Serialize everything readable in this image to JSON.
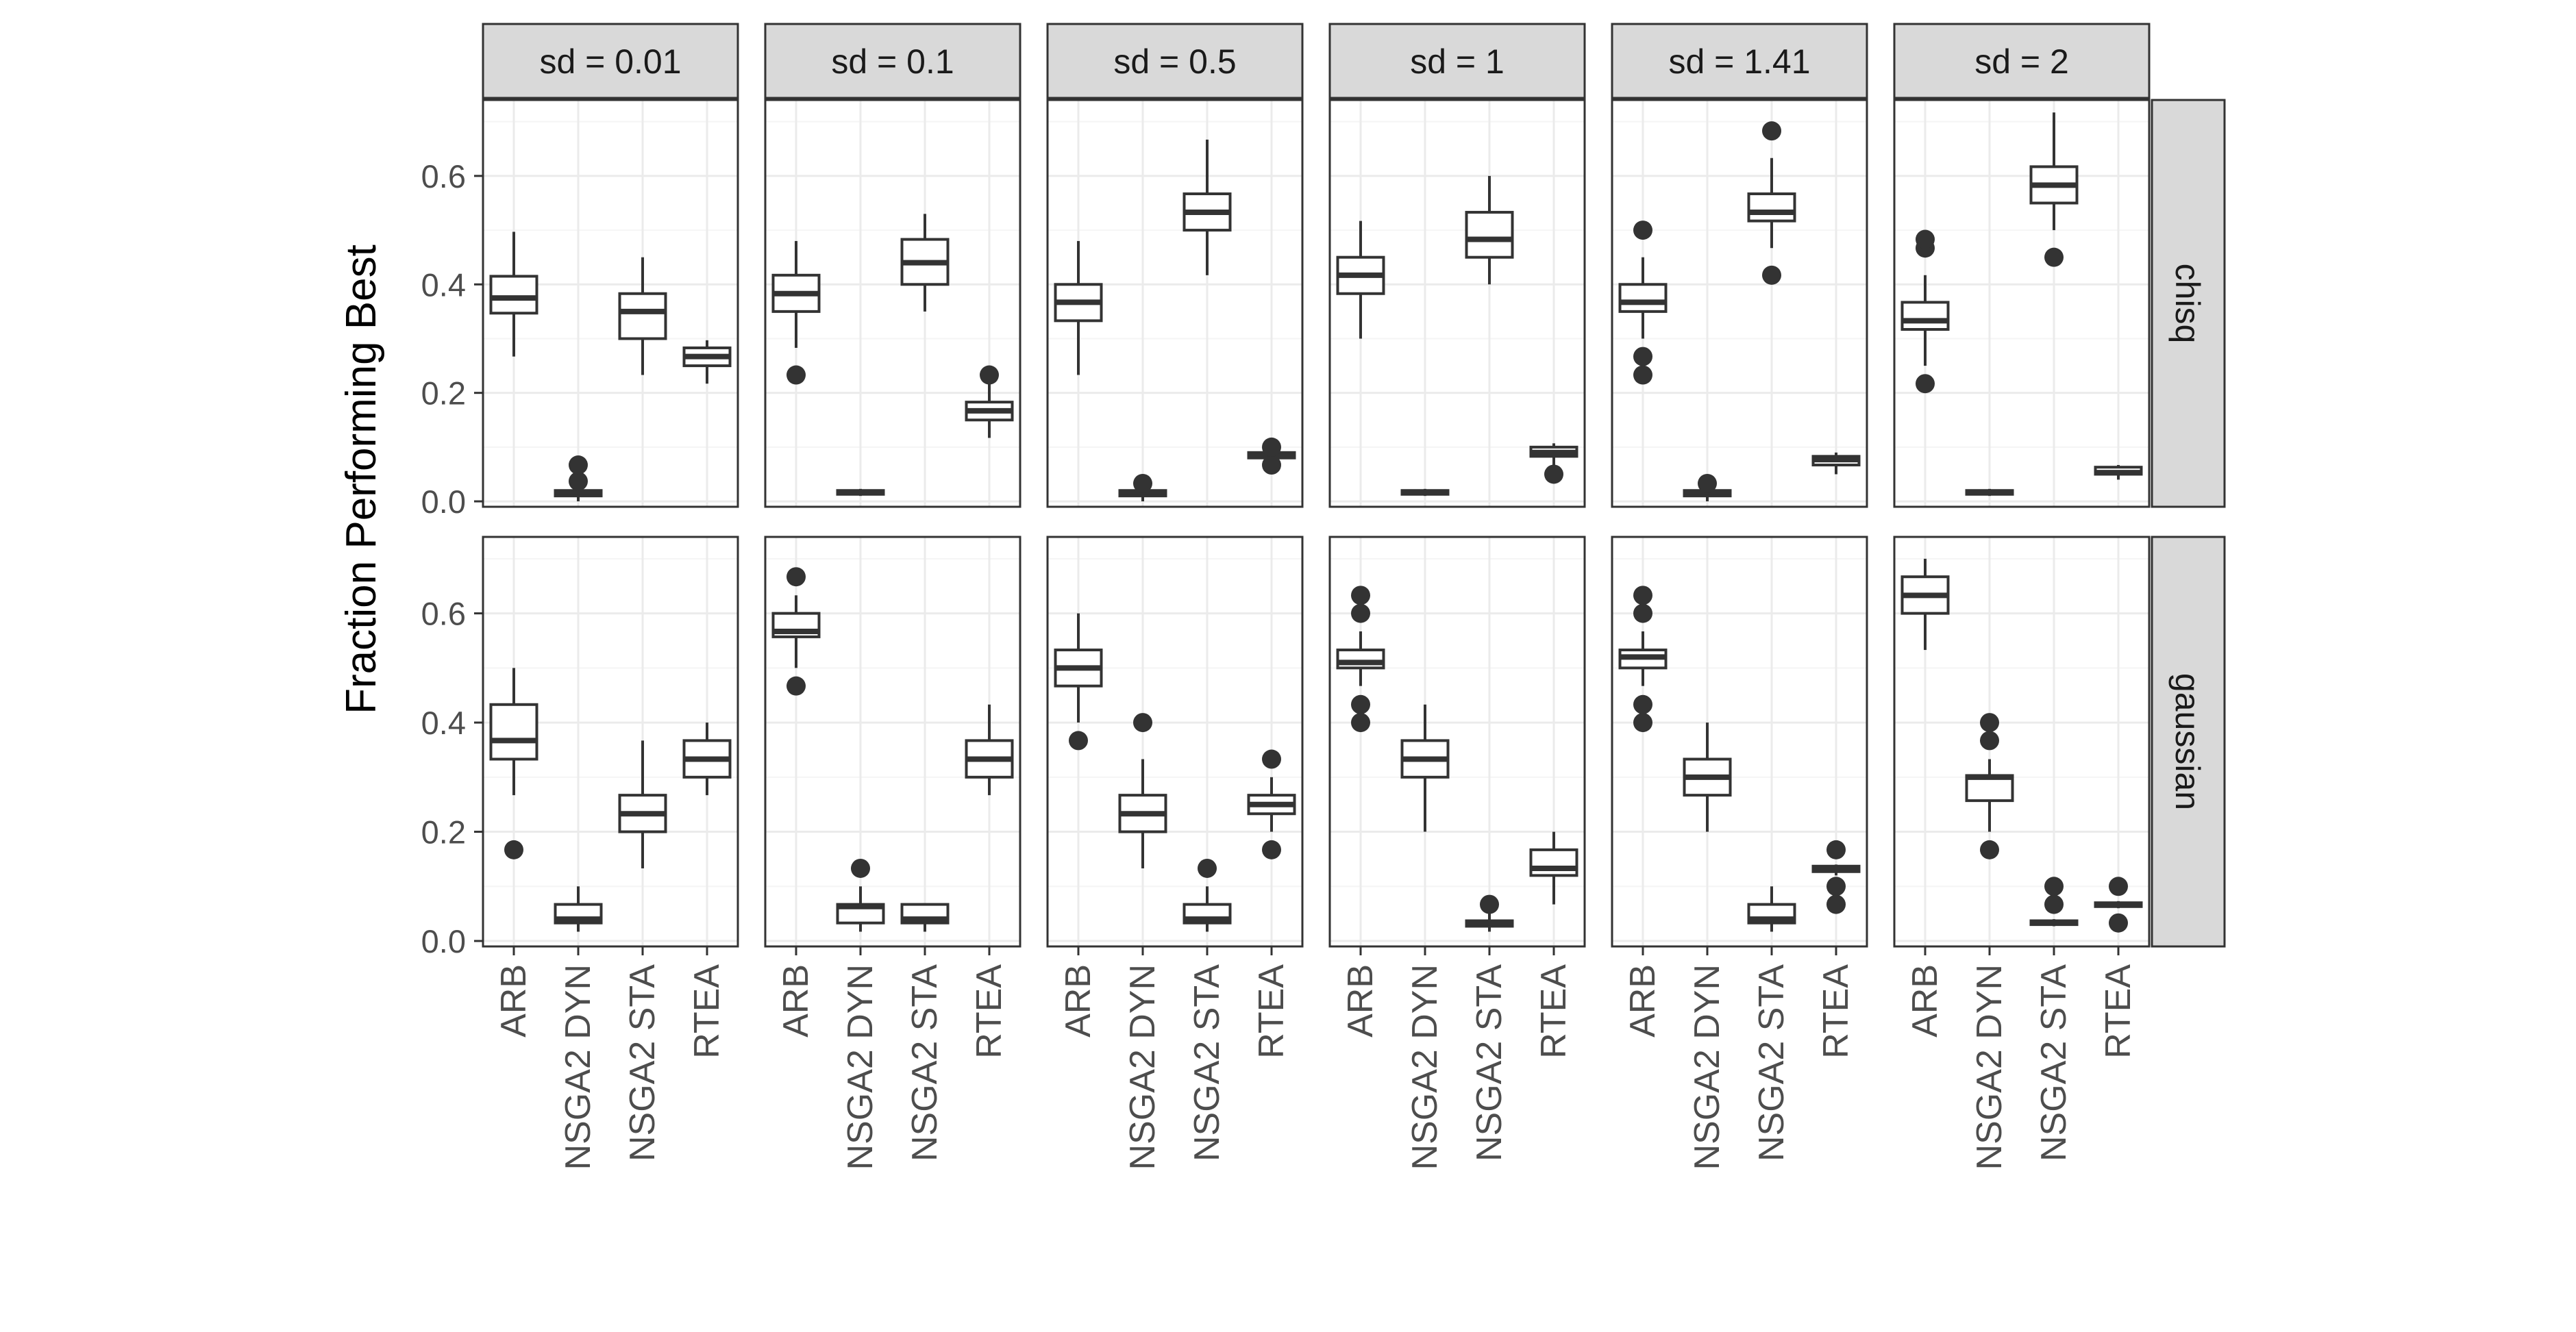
{
  "chart_data": {
    "type": "boxplot",
    "title": "",
    "xlabel": "",
    "ylabel": "Fraction Performing Best",
    "ylim": [
      -0.01,
      0.74
    ],
    "y_ticks": [
      0.0,
      0.2,
      0.4,
      0.6
    ],
    "y_tick_labels": [
      "0.0",
      "0.2",
      "0.4",
      "0.6"
    ],
    "grid": true,
    "legend": "none",
    "categories": [
      "ARB",
      "NSGA2 DYN",
      "NSGA2 STA",
      "RTEA"
    ],
    "columns": [
      "sd = 0.01",
      "sd = 0.1",
      "sd = 0.5",
      "sd = 1",
      "sd = 1.41",
      "sd = 2"
    ],
    "rows": [
      "chisq",
      "gaussian"
    ],
    "panels": [
      {
        "row": "chisq",
        "column": "sd = 0.01",
        "boxes": [
          {
            "category": "ARB",
            "whisker_low": 0.267,
            "q1": 0.347,
            "median": 0.375,
            "q3": 0.415,
            "whisker_high": 0.497,
            "outliers": []
          },
          {
            "category": "NSGA2 DYN",
            "whisker_low": 0.0,
            "q1": 0.01,
            "median": 0.017,
            "q3": 0.02,
            "whisker_high": 0.03,
            "outliers": [
              0.037,
              0.067
            ]
          },
          {
            "category": "NSGA2 STA",
            "whisker_low": 0.233,
            "q1": 0.3,
            "median": 0.35,
            "q3": 0.383,
            "whisker_high": 0.45,
            "outliers": []
          },
          {
            "category": "RTEA",
            "whisker_low": 0.217,
            "q1": 0.25,
            "median": 0.267,
            "q3": 0.283,
            "whisker_high": 0.297,
            "outliers": []
          }
        ]
      },
      {
        "row": "chisq",
        "column": "sd = 0.1",
        "boxes": [
          {
            "category": "ARB",
            "whisker_low": 0.283,
            "q1": 0.35,
            "median": 0.383,
            "q3": 0.417,
            "whisker_high": 0.48,
            "outliers": [
              0.233
            ]
          },
          {
            "category": "NSGA2 DYN",
            "whisker_low": 0.01,
            "q1": 0.013,
            "median": 0.017,
            "q3": 0.02,
            "whisker_high": 0.023,
            "outliers": []
          },
          {
            "category": "NSGA2 STA",
            "whisker_low": 0.35,
            "q1": 0.4,
            "median": 0.44,
            "q3": 0.483,
            "whisker_high": 0.53,
            "outliers": []
          },
          {
            "category": "RTEA",
            "whisker_low": 0.117,
            "q1": 0.15,
            "median": 0.167,
            "q3": 0.183,
            "whisker_high": 0.217,
            "outliers": [
              0.233
            ]
          }
        ]
      },
      {
        "row": "chisq",
        "column": "sd = 0.5",
        "boxes": [
          {
            "category": "ARB",
            "whisker_low": 0.233,
            "q1": 0.333,
            "median": 0.367,
            "q3": 0.4,
            "whisker_high": 0.48,
            "outliers": []
          },
          {
            "category": "NSGA2 DYN",
            "whisker_low": 0.0,
            "q1": 0.01,
            "median": 0.017,
            "q3": 0.02,
            "whisker_high": 0.027,
            "outliers": [
              0.033
            ]
          },
          {
            "category": "NSGA2 STA",
            "whisker_low": 0.417,
            "q1": 0.5,
            "median": 0.533,
            "q3": 0.567,
            "whisker_high": 0.667,
            "outliers": []
          },
          {
            "category": "RTEA",
            "whisker_low": 0.077,
            "q1": 0.08,
            "median": 0.083,
            "q3": 0.09,
            "whisker_high": 0.093,
            "outliers": [
              0.067,
              0.1
            ]
          }
        ]
      },
      {
        "row": "chisq",
        "column": "sd = 1",
        "boxes": [
          {
            "category": "ARB",
            "whisker_low": 0.3,
            "q1": 0.383,
            "median": 0.417,
            "q3": 0.45,
            "whisker_high": 0.517,
            "outliers": []
          },
          {
            "category": "NSGA2 DYN",
            "whisker_low": 0.01,
            "q1": 0.013,
            "median": 0.017,
            "q3": 0.02,
            "whisker_high": 0.023,
            "outliers": []
          },
          {
            "category": "NSGA2 STA",
            "whisker_low": 0.4,
            "q1": 0.45,
            "median": 0.483,
            "q3": 0.533,
            "whisker_high": 0.6,
            "outliers": []
          },
          {
            "category": "RTEA",
            "whisker_low": 0.067,
            "q1": 0.083,
            "median": 0.09,
            "q3": 0.1,
            "whisker_high": 0.107,
            "outliers": [
              0.05
            ]
          }
        ]
      },
      {
        "row": "chisq",
        "column": "sd = 1.41",
        "boxes": [
          {
            "category": "ARB",
            "whisker_low": 0.3,
            "q1": 0.35,
            "median": 0.367,
            "q3": 0.4,
            "whisker_high": 0.45,
            "outliers": [
              0.233,
              0.267,
              0.5
            ]
          },
          {
            "category": "NSGA2 DYN",
            "whisker_low": 0.0,
            "q1": 0.01,
            "median": 0.017,
            "q3": 0.02,
            "whisker_high": 0.027,
            "outliers": [
              0.033
            ]
          },
          {
            "category": "NSGA2 STA",
            "whisker_low": 0.467,
            "q1": 0.517,
            "median": 0.533,
            "q3": 0.567,
            "whisker_high": 0.633,
            "outliers": [
              0.417,
              0.683
            ]
          },
          {
            "category": "RTEA",
            "whisker_low": 0.05,
            "q1": 0.067,
            "median": 0.077,
            "q3": 0.083,
            "whisker_high": 0.09,
            "outliers": []
          }
        ]
      },
      {
        "row": "chisq",
        "column": "sd = 2",
        "boxes": [
          {
            "category": "ARB",
            "whisker_low": 0.25,
            "q1": 0.317,
            "median": 0.333,
            "q3": 0.367,
            "whisker_high": 0.417,
            "outliers": [
              0.217,
              0.467,
              0.483
            ]
          },
          {
            "category": "NSGA2 DYN",
            "whisker_low": 0.01,
            "q1": 0.013,
            "median": 0.017,
            "q3": 0.02,
            "whisker_high": 0.023,
            "outliers": []
          },
          {
            "category": "NSGA2 STA",
            "whisker_low": 0.5,
            "q1": 0.55,
            "median": 0.583,
            "q3": 0.617,
            "whisker_high": 0.717,
            "outliers": [
              0.45
            ]
          },
          {
            "category": "RTEA",
            "whisker_low": 0.04,
            "q1": 0.05,
            "median": 0.053,
            "q3": 0.063,
            "whisker_high": 0.067,
            "outliers": []
          }
        ]
      },
      {
        "row": "gaussian",
        "column": "sd = 0.01",
        "boxes": [
          {
            "category": "ARB",
            "whisker_low": 0.267,
            "q1": 0.333,
            "median": 0.367,
            "q3": 0.433,
            "whisker_high": 0.5,
            "outliers": [
              0.167
            ]
          },
          {
            "category": "NSGA2 DYN",
            "whisker_low": 0.017,
            "q1": 0.033,
            "median": 0.04,
            "q3": 0.067,
            "whisker_high": 0.1,
            "outliers": []
          },
          {
            "category": "NSGA2 STA",
            "whisker_low": 0.133,
            "q1": 0.2,
            "median": 0.233,
            "q3": 0.267,
            "whisker_high": 0.367,
            "outliers": []
          },
          {
            "category": "RTEA",
            "whisker_low": 0.267,
            "q1": 0.3,
            "median": 0.333,
            "q3": 0.367,
            "whisker_high": 0.4,
            "outliers": []
          }
        ]
      },
      {
        "row": "gaussian",
        "column": "sd = 0.1",
        "boxes": [
          {
            "category": "ARB",
            "whisker_low": 0.5,
            "q1": 0.557,
            "median": 0.567,
            "q3": 0.6,
            "whisker_high": 0.633,
            "outliers": [
              0.467,
              0.667
            ]
          },
          {
            "category": "NSGA2 DYN",
            "whisker_low": 0.017,
            "q1": 0.033,
            "median": 0.063,
            "q3": 0.067,
            "whisker_high": 0.1,
            "outliers": [
              0.133
            ]
          },
          {
            "category": "NSGA2 STA",
            "whisker_low": 0.017,
            "q1": 0.033,
            "median": 0.04,
            "q3": 0.067,
            "whisker_high": 0.067,
            "outliers": []
          },
          {
            "category": "RTEA",
            "whisker_low": 0.267,
            "q1": 0.3,
            "median": 0.333,
            "q3": 0.367,
            "whisker_high": 0.433,
            "outliers": []
          }
        ]
      },
      {
        "row": "gaussian",
        "column": "sd = 0.5",
        "boxes": [
          {
            "category": "ARB",
            "whisker_low": 0.4,
            "q1": 0.467,
            "median": 0.5,
            "q3": 0.533,
            "whisker_high": 0.6,
            "outliers": [
              0.367
            ]
          },
          {
            "category": "NSGA2 DYN",
            "whisker_low": 0.133,
            "q1": 0.2,
            "median": 0.233,
            "q3": 0.267,
            "whisker_high": 0.333,
            "outliers": [
              0.4
            ]
          },
          {
            "category": "NSGA2 STA",
            "whisker_low": 0.017,
            "q1": 0.033,
            "median": 0.04,
            "q3": 0.067,
            "whisker_high": 0.1,
            "outliers": [
              0.133
            ]
          },
          {
            "category": "RTEA",
            "whisker_low": 0.2,
            "q1": 0.233,
            "median": 0.25,
            "q3": 0.267,
            "whisker_high": 0.3,
            "outliers": [
              0.167,
              0.333
            ]
          }
        ]
      },
      {
        "row": "gaussian",
        "column": "sd = 1",
        "boxes": [
          {
            "category": "ARB",
            "whisker_low": 0.467,
            "q1": 0.5,
            "median": 0.51,
            "q3": 0.533,
            "whisker_high": 0.567,
            "outliers": [
              0.4,
              0.433,
              0.6,
              0.633
            ]
          },
          {
            "category": "NSGA2 DYN",
            "whisker_low": 0.2,
            "q1": 0.3,
            "median": 0.333,
            "q3": 0.367,
            "whisker_high": 0.433,
            "outliers": []
          },
          {
            "category": "NSGA2 STA",
            "whisker_low": 0.017,
            "q1": 0.027,
            "median": 0.033,
            "q3": 0.037,
            "whisker_high": 0.05,
            "outliers": [
              0.067
            ]
          },
          {
            "category": "RTEA",
            "whisker_low": 0.067,
            "q1": 0.12,
            "median": 0.133,
            "q3": 0.167,
            "whisker_high": 0.2,
            "outliers": []
          }
        ]
      },
      {
        "row": "gaussian",
        "column": "sd = 1.41",
        "boxes": [
          {
            "category": "ARB",
            "whisker_low": 0.467,
            "q1": 0.5,
            "median": 0.52,
            "q3": 0.533,
            "whisker_high": 0.567,
            "outliers": [
              0.4,
              0.433,
              0.6,
              0.633
            ]
          },
          {
            "category": "NSGA2 DYN",
            "whisker_low": 0.2,
            "q1": 0.267,
            "median": 0.3,
            "q3": 0.333,
            "whisker_high": 0.4,
            "outliers": []
          },
          {
            "category": "NSGA2 STA",
            "whisker_low": 0.017,
            "q1": 0.033,
            "median": 0.04,
            "q3": 0.067,
            "whisker_high": 0.1,
            "outliers": []
          },
          {
            "category": "RTEA",
            "whisker_low": 0.12,
            "q1": 0.127,
            "median": 0.133,
            "q3": 0.137,
            "whisker_high": 0.14,
            "outliers": [
              0.067,
              0.1,
              0.167
            ]
          }
        ]
      },
      {
        "row": "gaussian",
        "column": "sd = 2",
        "boxes": [
          {
            "category": "ARB",
            "whisker_low": 0.533,
            "q1": 0.6,
            "median": 0.633,
            "q3": 0.667,
            "whisker_high": 0.7,
            "outliers": []
          },
          {
            "category": "NSGA2 DYN",
            "whisker_low": 0.2,
            "q1": 0.257,
            "median": 0.3,
            "q3": 0.303,
            "whisker_high": 0.333,
            "outliers": [
              0.167,
              0.367,
              0.4
            ]
          },
          {
            "category": "NSGA2 STA",
            "whisker_low": 0.027,
            "q1": 0.03,
            "median": 0.033,
            "q3": 0.037,
            "whisker_high": 0.04,
            "outliers": [
              0.067,
              0.1
            ]
          },
          {
            "category": "RTEA",
            "whisker_low": 0.06,
            "q1": 0.063,
            "median": 0.067,
            "q3": 0.07,
            "whisker_high": 0.073,
            "outliers": [
              0.033,
              0.1
            ]
          }
        ]
      }
    ]
  },
  "colors": {
    "background": "#ffffff",
    "panel_border": "#333333",
    "strip_fill": "#d9d9d9",
    "grid_major": "#ebebeb",
    "grid_minor": "#f5f5f5",
    "box_stroke": "#333333",
    "outlier": "#333333",
    "axis_text": "#4d4d4d",
    "title_text": "#000000"
  }
}
